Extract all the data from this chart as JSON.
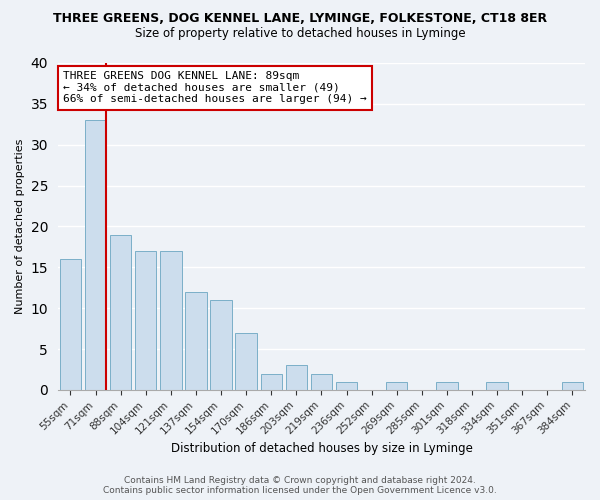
{
  "title": "THREE GREENS, DOG KENNEL LANE, LYMINGE, FOLKESTONE, CT18 8ER",
  "subtitle": "Size of property relative to detached houses in Lyminge",
  "xlabel": "Distribution of detached houses by size in Lyminge",
  "ylabel": "Number of detached properties",
  "bar_color": "#ccdded",
  "bar_edge_color": "#7aafc8",
  "categories": [
    "55sqm",
    "71sqm",
    "88sqm",
    "104sqm",
    "121sqm",
    "137sqm",
    "154sqm",
    "170sqm",
    "186sqm",
    "203sqm",
    "219sqm",
    "236sqm",
    "252sqm",
    "269sqm",
    "285sqm",
    "301sqm",
    "318sqm",
    "334sqm",
    "351sqm",
    "367sqm",
    "384sqm"
  ],
  "values": [
    16,
    33,
    19,
    17,
    17,
    12,
    11,
    7,
    2,
    3,
    2,
    1,
    0,
    1,
    0,
    1,
    0,
    1,
    0,
    0,
    1
  ],
  "vline_index": 1,
  "vline_color": "#cc0000",
  "ylim": [
    0,
    40
  ],
  "annotation_text": "THREE GREENS DOG KENNEL LANE: 89sqm\n← 34% of detached houses are smaller (49)\n66% of semi-detached houses are larger (94) →",
  "footer_line1": "Contains HM Land Registry data © Crown copyright and database right 2024.",
  "footer_line2": "Contains public sector information licensed under the Open Government Licence v3.0.",
  "background_color": "#eef2f7",
  "grid_color": "#ffffff",
  "title_fontsize": 9,
  "subtitle_fontsize": 8.5,
  "annotation_fontsize": 8,
  "ylabel_fontsize": 8,
  "xlabel_fontsize": 8.5,
  "tick_fontsize": 7.5,
  "footer_fontsize": 6.5
}
